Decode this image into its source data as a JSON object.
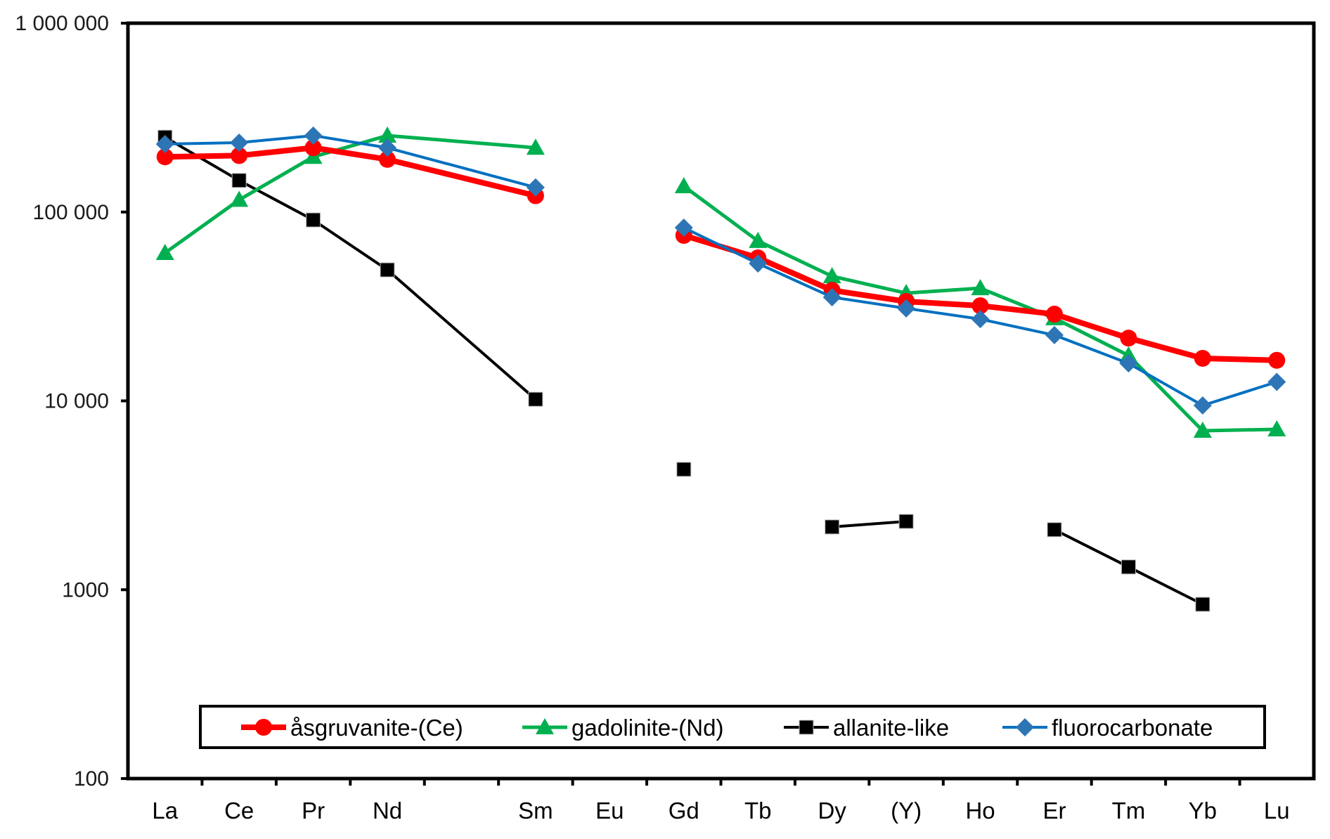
{
  "chart_data": {
    "type": "line",
    "title": "",
    "xlabel": "",
    "ylabel": "",
    "yscale": "log",
    "ylim": [
      100,
      1000000
    ],
    "grid": false,
    "legend_position": "bottom-center-inside",
    "y_ticks": [
      {
        "value": 1000000,
        "label": "1 000 000"
      },
      {
        "value": 100000,
        "label": "100 000"
      },
      {
        "value": 10000,
        "label": "10 000"
      },
      {
        "value": 1000,
        "label": "1000"
      },
      {
        "value": 100,
        "label": "100"
      }
    ],
    "categories": [
      "La",
      "Ce",
      "Pr",
      "Nd",
      "",
      "Sm",
      "Eu",
      "Gd",
      "Tb",
      "Dy",
      "(Y)",
      "Ho",
      "Er",
      "Tm",
      "Yb",
      "Lu"
    ],
    "series": [
      {
        "name": "åsgruvanite-(Ce)",
        "color": "#FF0000",
        "marker": "circle",
        "values": [
          196000,
          199000,
          219000,
          190000,
          null,
          122000,
          null,
          75200,
          57200,
          38500,
          33600,
          31900,
          28800,
          21500,
          16800,
          16400
        ]
      },
      {
        "name": "gadolinite-(Nd)",
        "color": "#00B050",
        "marker": "triangle",
        "values": [
          60700,
          116000,
          196000,
          254000,
          null,
          219000,
          null,
          137000,
          70300,
          45700,
          37200,
          39500,
          27400,
          17400,
          6950,
          7070
        ]
      },
      {
        "name": "allanite-like",
        "color": "#000000",
        "marker": "square",
        "values": [
          249000,
          147000,
          90800,
          49400,
          null,
          10200,
          null,
          4340,
          null,
          2150,
          2300,
          null,
          2080,
          1320,
          837,
          null
        ]
      },
      {
        "name": "fluorocarbonate",
        "color": "#2E75B6",
        "line_color": "#0070C0",
        "marker": "diamond",
        "values": [
          229000,
          233000,
          254000,
          219000,
          null,
          135000,
          null,
          82600,
          53400,
          35400,
          30900,
          27100,
          22300,
          15800,
          9460,
          12600
        ]
      }
    ]
  }
}
